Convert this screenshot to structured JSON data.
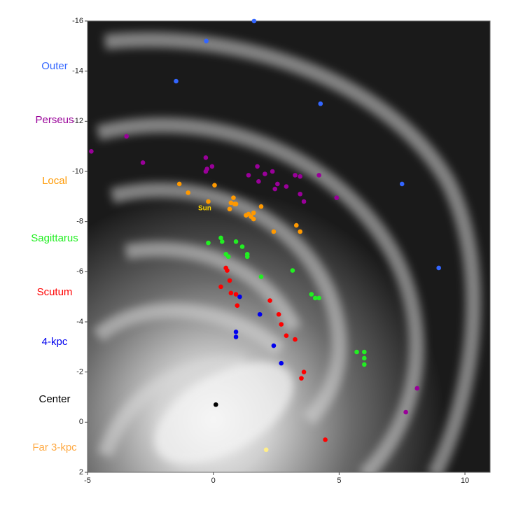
{
  "chart_data": {
    "type": "scatter",
    "annotation": "Sun",
    "xlim": [
      -5,
      11
    ],
    "xticks": [
      -5,
      0,
      5,
      10
    ],
    "ylim": [
      -16,
      2
    ],
    "y_inverted": true,
    "yticks": [
      -16,
      -14,
      -12,
      -10,
      -8,
      -6,
      -4,
      -2,
      0,
      2
    ],
    "series": [
      {
        "name": "Outer",
        "color": "#3366ff",
        "x": [
          1.62,
          -0.28,
          -1.48,
          4.26,
          7.5,
          8.96
        ],
        "values": [
          -16.0,
          -15.2,
          -13.6,
          -12.7,
          -9.5,
          -6.15
        ]
      },
      {
        "name": "Perseus",
        "color": "#990099",
        "x": [
          -4.85,
          -3.45,
          -2.8,
          -0.3,
          -0.25,
          -0.3,
          -0.05,
          1.4,
          1.75,
          2.05,
          1.8,
          2.35,
          2.45,
          2.55,
          2.9,
          3.25,
          3.45,
          3.45,
          3.6,
          4.2,
          4.9,
          8.1,
          7.65
        ],
        "values": [
          -10.8,
          -11.4,
          -10.35,
          -10.55,
          -10.1,
          -10.0,
          -10.2,
          -9.85,
          -10.2,
          -9.9,
          -9.6,
          -10.0,
          -9.3,
          -9.5,
          -9.4,
          -9.85,
          -9.8,
          -9.1,
          -8.8,
          -9.85,
          -8.95,
          -1.35,
          -0.4
        ]
      },
      {
        "name": "Local",
        "color": "#ff9900",
        "x": [
          -1.35,
          -1.0,
          0.05,
          -0.2,
          0.8,
          0.7,
          0.85,
          0.65,
          0.9,
          1.3,
          1.4,
          1.5,
          1.6,
          1.6,
          1.9,
          2.4,
          3.3,
          3.45
        ],
        "values": [
          -9.5,
          -9.15,
          -9.45,
          -8.8,
          -8.95,
          -8.75,
          -8.7,
          -8.5,
          -8.7,
          -8.25,
          -8.3,
          -8.2,
          -8.1,
          -8.35,
          -8.6,
          -7.6,
          -7.85,
          -7.6
        ]
      },
      {
        "name": "Sagittarus",
        "color": "#22ee22",
        "x": [
          -0.2,
          0.3,
          0.35,
          0.9,
          0.5,
          0.6,
          1.15,
          1.35,
          1.35,
          1.9,
          3.15,
          3.9,
          4.05,
          4.2,
          5.7,
          6.0,
          6.0,
          6.0
        ],
        "values": [
          -7.15,
          -7.35,
          -7.2,
          -7.2,
          -6.7,
          -6.6,
          -7.0,
          -6.7,
          -6.6,
          -5.8,
          -6.05,
          -5.1,
          -4.95,
          -4.95,
          -2.8,
          -2.8,
          -2.55,
          -2.3
        ]
      },
      {
        "name": "Scutum",
        "color": "#ff0000",
        "x": [
          0.5,
          0.55,
          0.3,
          0.65,
          0.7,
          0.9,
          0.95,
          2.25,
          2.6,
          2.7,
          2.9,
          3.25,
          3.6,
          3.5,
          4.45
        ],
        "values": [
          -6.15,
          -6.05,
          -5.4,
          -5.65,
          -5.15,
          -5.1,
          -4.65,
          -4.85,
          -4.3,
          -3.9,
          -3.45,
          -3.3,
          -2.0,
          -1.75,
          0.7
        ]
      },
      {
        "name": "4-kpc",
        "color": "#0000ee",
        "x": [
          1.05,
          0.9,
          0.9,
          1.85,
          2.4,
          2.7
        ],
        "values": [
          -5.0,
          -3.6,
          -3.4,
          -4.3,
          -3.05,
          -2.35
        ]
      },
      {
        "name": "Center",
        "color": "#000000",
        "x": [
          0.1
        ],
        "values": [
          -0.7
        ]
      },
      {
        "name": "Far 3-kpc",
        "color": "#ffaa44",
        "point_color": "#ffee88",
        "x": [
          2.1
        ],
        "values": [
          1.1
        ]
      }
    ]
  }
}
